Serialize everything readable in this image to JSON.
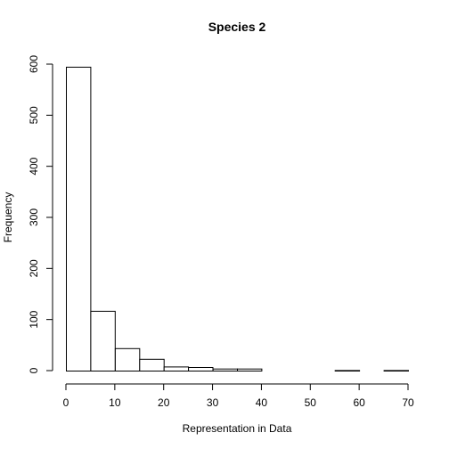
{
  "chart_data": {
    "type": "bar",
    "title": "Species 2",
    "xlabel": "Representation in Data",
    "ylabel": "Frequency",
    "bins": [
      {
        "from": 0,
        "to": 5,
        "count": 595
      },
      {
        "from": 5,
        "to": 10,
        "count": 117
      },
      {
        "from": 10,
        "to": 15,
        "count": 44
      },
      {
        "from": 15,
        "to": 20,
        "count": 23
      },
      {
        "from": 20,
        "to": 25,
        "count": 8
      },
      {
        "from": 25,
        "to": 30,
        "count": 7
      },
      {
        "from": 30,
        "to": 35,
        "count": 4
      },
      {
        "from": 35,
        "to": 40,
        "count": 4
      },
      {
        "from": 40,
        "to": 45,
        "count": 0
      },
      {
        "from": 45,
        "to": 50,
        "count": 0
      },
      {
        "from": 50,
        "to": 55,
        "count": 0
      },
      {
        "from": 55,
        "to": 60,
        "count": 1
      },
      {
        "from": 60,
        "to": 65,
        "count": 0
      },
      {
        "from": 65,
        "to": 70,
        "count": 1
      }
    ],
    "xlim": [
      0,
      70
    ],
    "ylim": [
      0,
      600
    ],
    "xticks": [
      "0",
      "10",
      "20",
      "30",
      "40",
      "50",
      "60",
      "70"
    ],
    "yticks": [
      "0",
      "100",
      "200",
      "300",
      "400",
      "500",
      "600"
    ],
    "grid": false,
    "legend": "none"
  }
}
